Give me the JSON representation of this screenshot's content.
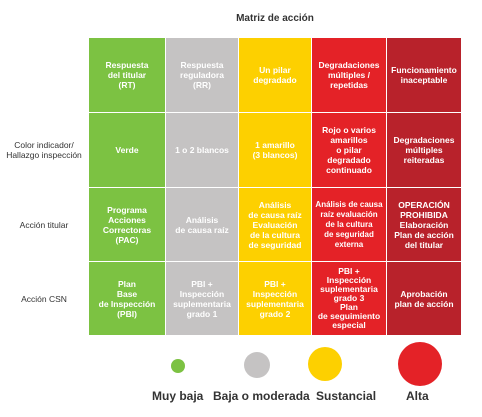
{
  "title": "Matriz de acción",
  "row_labels": [
    "",
    "Color indicador/\nHallazgo inspección",
    "Acción titular",
    "Acción CSN"
  ],
  "colors": {
    "green": "#7cc242",
    "gray": "#c5c3c3",
    "yellow": "#fdd000",
    "red": "#e42227",
    "darkred": "#b8222b"
  },
  "cells": [
    [
      "Respuesta\ndel titular\n(RT)",
      "Respuesta\nreguladora\n(RR)",
      "Un pilar\ndegradado",
      "Degradaciones\nmúltiples /\nrepetidas",
      "Funcionamiento\ninaceptable"
    ],
    [
      "Verde",
      "1 o 2 blancos",
      "1 amarillo\n(3 blancos)",
      "Rojo o varios\namarillos\no pilar\ndegradado\ncontinuado",
      "Degradaciones\nmúltiples\nreiteradas"
    ],
    [
      "Programa\nAcciones\nCorrectoras\n(PAC)",
      "Análisis\nde causa raíz",
      "Análisis\nde causa raíz\nEvaluación\nde la cultura\nde seguridad",
      "Análisis de causa\nraíz evaluación\nde la cultura\nde seguridad\nexterna",
      "OPERACIÓN\nPROHIBIDA\nElaboración\nPlan de acción\ndel titular"
    ],
    [
      "Plan\nBase\nde Inspección\n(PBI)",
      "PBI +\nInspección\nsuplementaria\ngrado 1",
      "PBI +\nInspección\nsuplementaria\ngrado 2",
      "PBI +\nInspección\nsuplementaria\ngrado 3\nPlan\nde seguimiento\nespecial",
      "Aprobación\nplan de acción"
    ]
  ],
  "legend": [
    {
      "label": "Muy baja",
      "color": "#7cc242"
    },
    {
      "label": "Baja o moderada",
      "color": "#c5c3c3"
    },
    {
      "label": "Sustancial",
      "color": "#fdd000"
    },
    {
      "label": "Alta",
      "color": "#e42227"
    }
  ]
}
